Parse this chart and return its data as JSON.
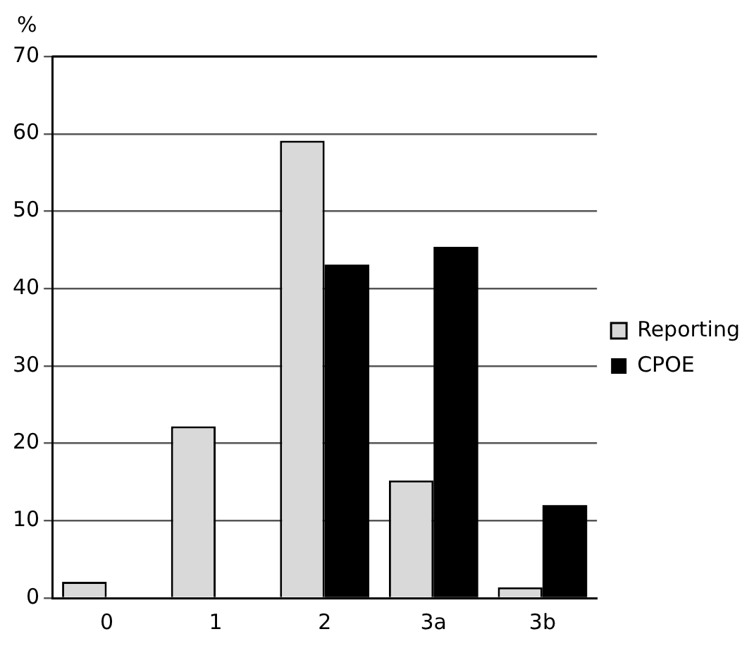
{
  "chart_data": {
    "type": "bar",
    "ylabel": "%",
    "categories": [
      "0",
      "1",
      "2",
      "3a",
      "3b"
    ],
    "series": [
      {
        "name": "Reporting",
        "color": "#d9d9d9",
        "values": [
          2.1,
          22.2,
          59.1,
          15.2,
          1.4
        ]
      },
      {
        "name": "CPOE",
        "color": "#000000",
        "values": [
          0,
          0,
          43.1,
          45.4,
          12
        ]
      }
    ],
    "ylim": [
      0,
      70
    ],
    "yticks": [
      0,
      10,
      20,
      30,
      40,
      50,
      60,
      70
    ],
    "grid": "y",
    "legend": "right"
  }
}
